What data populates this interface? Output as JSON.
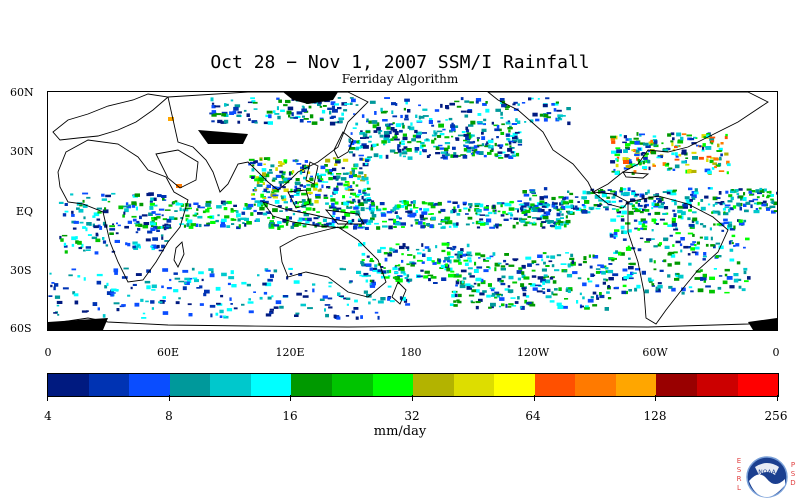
{
  "header": {
    "title": "Oct 28 − Nov 1, 2007 SSM/I Rainfall",
    "subtitle": "Ferriday Algorithm"
  },
  "map": {
    "lat_labels": [
      "60N",
      "30N",
      "EQ",
      "30S",
      "60S"
    ],
    "lon_labels": [
      "0",
      "60E",
      "120E",
      "180",
      "120W",
      "60W",
      "0"
    ]
  },
  "colorbar": {
    "colors": [
      "#001a80",
      "#0033b3",
      "#0a4dff",
      "#00999b",
      "#00c8cc",
      "#00ffff",
      "#009900",
      "#00c400",
      "#00ff00",
      "#b3b300",
      "#dddd00",
      "#ffff00",
      "#ff5000",
      "#ff7a00",
      "#ffa600",
      "#990000",
      "#cc0000",
      "#ff0000"
    ],
    "tick_labels": [
      "4",
      "8",
      "16",
      "32",
      "64",
      "128",
      "256"
    ],
    "units": "mm/day"
  },
  "logo": {
    "left_text": "ESRL",
    "right_text": "PSD",
    "badge_text": "NOAA"
  }
}
